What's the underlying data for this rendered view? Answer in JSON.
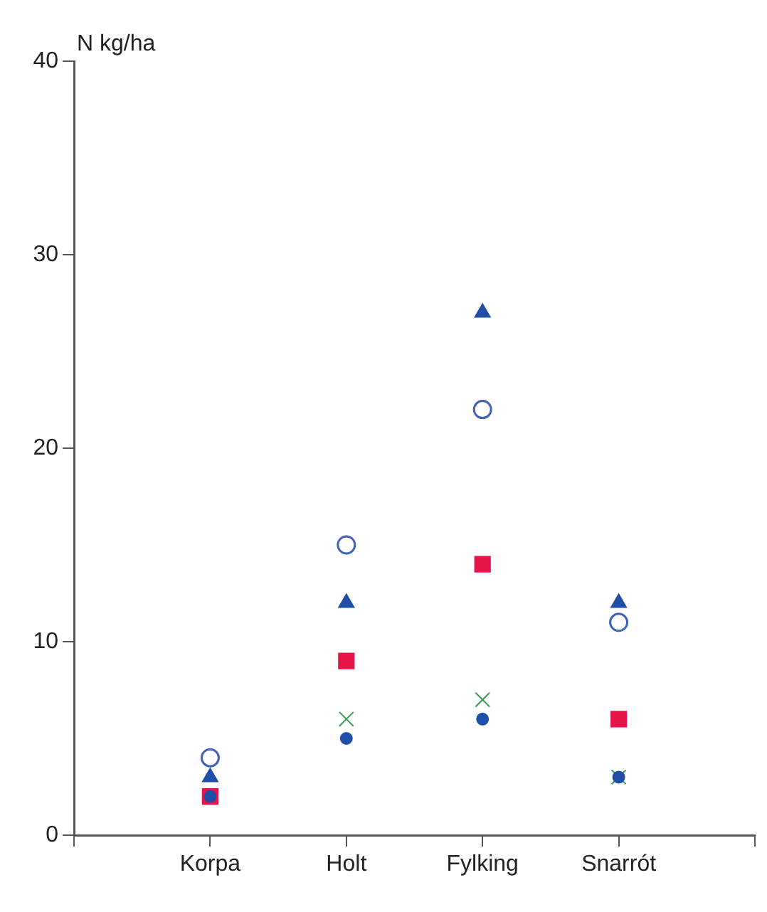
{
  "chart_data": {
    "type": "scatter",
    "ylabel": "N kg/ha",
    "categories": [
      null,
      "Korpa",
      "Holt",
      "Fylking",
      "Snarrót",
      null
    ],
    "ylim": [
      0,
      40
    ],
    "yticks": [
      0,
      10,
      20,
      30,
      40
    ],
    "grid": false,
    "legend": false,
    "series": [
      {
        "color": "#1f4fa8",
        "marker": "triangle",
        "values": [
          null,
          3,
          12,
          27,
          12,
          null
        ]
      },
      {
        "color": "#3f63b5",
        "marker": "circle",
        "values": [
          null,
          4,
          15,
          22,
          11,
          null
        ]
      },
      {
        "color": "#e5154a",
        "marker": "square",
        "values": [
          null,
          2,
          9,
          14,
          6,
          null
        ]
      },
      {
        "color": "#3a9a5a",
        "marker": "cross",
        "values": [
          null,
          null,
          6,
          7,
          3,
          null
        ]
      },
      {
        "color": "#1f4fa8",
        "marker": "circle",
        "values": [
          null,
          2,
          5,
          6,
          3,
          null
        ]
      }
    ]
  }
}
